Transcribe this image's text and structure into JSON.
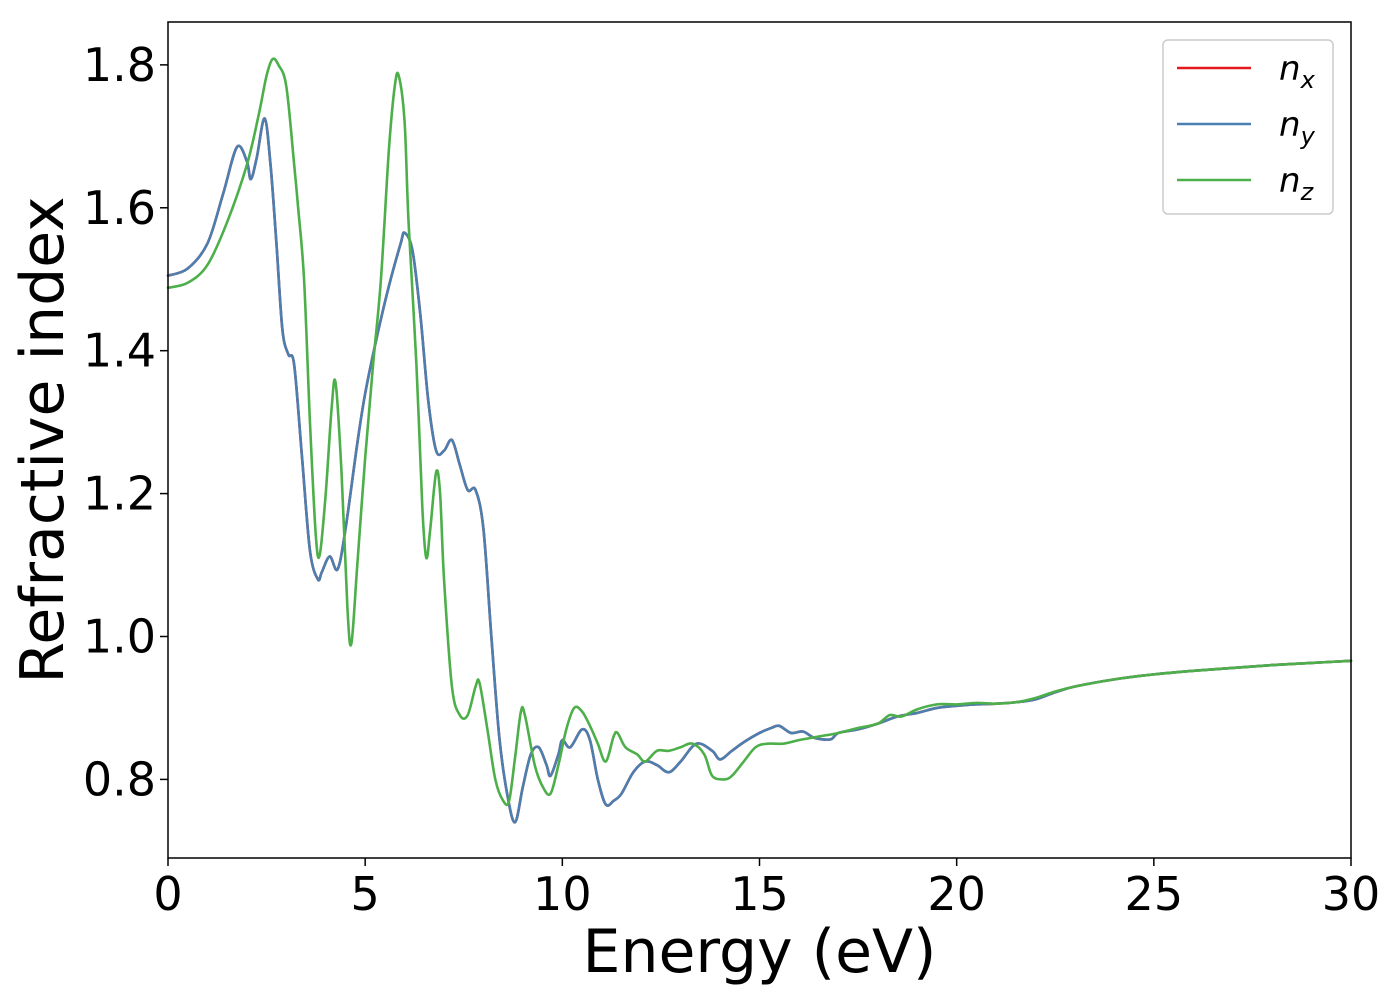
{
  "chart_data": {
    "type": "line",
    "xlabel": "Energy (eV)",
    "ylabel": "Refractive index",
    "xlim": [
      0,
      30
    ],
    "ylim": [
      0.69,
      1.86
    ],
    "xticks": [
      0,
      5,
      10,
      15,
      20,
      25,
      30
    ],
    "xtick_labels": [
      "0",
      "5",
      "10",
      "15",
      "20",
      "25",
      "30"
    ],
    "yticks": [
      0.8,
      1.0,
      1.2,
      1.4,
      1.6,
      1.8
    ],
    "ytick_labels": [
      "0.8",
      "1.0",
      "1.2",
      "1.4",
      "1.6",
      "1.8"
    ],
    "grid": false,
    "legend_position": "top-right",
    "series": [
      {
        "name": "n",
        "subscript": "x",
        "color": "#e41a1c",
        "points": [
          [
            0,
            1.505
          ],
          [
            0.5,
            1.515
          ],
          [
            1.0,
            1.55
          ],
          [
            1.4,
            1.62
          ],
          [
            1.75,
            1.685
          ],
          [
            2.0,
            1.665
          ],
          [
            2.1,
            1.64
          ],
          [
            2.25,
            1.67
          ],
          [
            2.45,
            1.725
          ],
          [
            2.6,
            1.66
          ],
          [
            2.75,
            1.55
          ],
          [
            2.9,
            1.43
          ],
          [
            3.05,
            1.395
          ],
          [
            3.2,
            1.38
          ],
          [
            3.4,
            1.25
          ],
          [
            3.6,
            1.12
          ],
          [
            3.8,
            1.08
          ],
          [
            3.9,
            1.09
          ],
          [
            4.1,
            1.112
          ],
          [
            4.3,
            1.094
          ],
          [
            4.5,
            1.15
          ],
          [
            4.8,
            1.27
          ],
          [
            5.0,
            1.34
          ],
          [
            5.3,
            1.42
          ],
          [
            5.6,
            1.49
          ],
          [
            5.9,
            1.55
          ],
          [
            6.0,
            1.565
          ],
          [
            6.2,
            1.54
          ],
          [
            6.4,
            1.45
          ],
          [
            6.6,
            1.33
          ],
          [
            6.8,
            1.26
          ],
          [
            7.0,
            1.26
          ],
          [
            7.2,
            1.275
          ],
          [
            7.4,
            1.24
          ],
          [
            7.6,
            1.205
          ],
          [
            7.8,
            1.205
          ],
          [
            8.0,
            1.15
          ],
          [
            8.2,
            1.0
          ],
          [
            8.4,
            0.86
          ],
          [
            8.6,
            0.78
          ],
          [
            8.8,
            0.74
          ],
          [
            9.0,
            0.79
          ],
          [
            9.2,
            0.835
          ],
          [
            9.4,
            0.845
          ],
          [
            9.6,
            0.82
          ],
          [
            9.7,
            0.805
          ],
          [
            9.9,
            0.835
          ],
          [
            10.0,
            0.855
          ],
          [
            10.2,
            0.845
          ],
          [
            10.5,
            0.87
          ],
          [
            10.7,
            0.855
          ],
          [
            10.9,
            0.8
          ],
          [
            11.1,
            0.765
          ],
          [
            11.3,
            0.77
          ],
          [
            11.5,
            0.78
          ],
          [
            11.8,
            0.81
          ],
          [
            12.1,
            0.825
          ],
          [
            12.4,
            0.82
          ],
          [
            12.7,
            0.81
          ],
          [
            13.0,
            0.825
          ],
          [
            13.4,
            0.85
          ],
          [
            13.8,
            0.84
          ],
          [
            14.0,
            0.828
          ],
          [
            14.3,
            0.84
          ],
          [
            14.6,
            0.852
          ],
          [
            15.0,
            0.865
          ],
          [
            15.3,
            0.872
          ],
          [
            15.5,
            0.875
          ],
          [
            15.8,
            0.865
          ],
          [
            16.1,
            0.867
          ],
          [
            16.4,
            0.858
          ],
          [
            16.8,
            0.856
          ],
          [
            17.0,
            0.865
          ],
          [
            17.5,
            0.87
          ],
          [
            18.0,
            0.878
          ],
          [
            18.5,
            0.888
          ],
          [
            19.0,
            0.893
          ],
          [
            19.5,
            0.9
          ],
          [
            20.0,
            0.903
          ],
          [
            20.5,
            0.905
          ],
          [
            21.0,
            0.906
          ],
          [
            21.5,
            0.908
          ],
          [
            22.0,
            0.912
          ],
          [
            22.5,
            0.922
          ],
          [
            23.0,
            0.93
          ],
          [
            24.0,
            0.94
          ],
          [
            25.0,
            0.947
          ],
          [
            26.0,
            0.952
          ],
          [
            27.0,
            0.956
          ],
          [
            28.0,
            0.96
          ],
          [
            29.0,
            0.963
          ],
          [
            30.0,
            0.966
          ]
        ]
      },
      {
        "name": "n",
        "subscript": "y",
        "color": "#4a7fb0",
        "points": [
          [
            0,
            1.505
          ],
          [
            0.5,
            1.515
          ],
          [
            1.0,
            1.55
          ],
          [
            1.4,
            1.62
          ],
          [
            1.75,
            1.685
          ],
          [
            2.0,
            1.665
          ],
          [
            2.1,
            1.64
          ],
          [
            2.25,
            1.67
          ],
          [
            2.45,
            1.725
          ],
          [
            2.6,
            1.66
          ],
          [
            2.75,
            1.55
          ],
          [
            2.9,
            1.43
          ],
          [
            3.05,
            1.395
          ],
          [
            3.2,
            1.38
          ],
          [
            3.4,
            1.25
          ],
          [
            3.6,
            1.12
          ],
          [
            3.8,
            1.08
          ],
          [
            3.9,
            1.09
          ],
          [
            4.1,
            1.112
          ],
          [
            4.3,
            1.094
          ],
          [
            4.5,
            1.15
          ],
          [
            4.8,
            1.27
          ],
          [
            5.0,
            1.34
          ],
          [
            5.3,
            1.42
          ],
          [
            5.6,
            1.49
          ],
          [
            5.9,
            1.55
          ],
          [
            6.0,
            1.565
          ],
          [
            6.2,
            1.54
          ],
          [
            6.4,
            1.45
          ],
          [
            6.6,
            1.33
          ],
          [
            6.8,
            1.26
          ],
          [
            7.0,
            1.26
          ],
          [
            7.2,
            1.275
          ],
          [
            7.4,
            1.24
          ],
          [
            7.6,
            1.205
          ],
          [
            7.8,
            1.205
          ],
          [
            8.0,
            1.15
          ],
          [
            8.2,
            1.0
          ],
          [
            8.4,
            0.86
          ],
          [
            8.6,
            0.78
          ],
          [
            8.8,
            0.74
          ],
          [
            9.0,
            0.79
          ],
          [
            9.2,
            0.835
          ],
          [
            9.4,
            0.845
          ],
          [
            9.6,
            0.82
          ],
          [
            9.7,
            0.805
          ],
          [
            9.9,
            0.835
          ],
          [
            10.0,
            0.855
          ],
          [
            10.2,
            0.845
          ],
          [
            10.5,
            0.87
          ],
          [
            10.7,
            0.855
          ],
          [
            10.9,
            0.8
          ],
          [
            11.1,
            0.765
          ],
          [
            11.3,
            0.77
          ],
          [
            11.5,
            0.78
          ],
          [
            11.8,
            0.81
          ],
          [
            12.1,
            0.825
          ],
          [
            12.4,
            0.82
          ],
          [
            12.7,
            0.81
          ],
          [
            13.0,
            0.825
          ],
          [
            13.4,
            0.85
          ],
          [
            13.8,
            0.84
          ],
          [
            14.0,
            0.828
          ],
          [
            14.3,
            0.84
          ],
          [
            14.6,
            0.852
          ],
          [
            15.0,
            0.865
          ],
          [
            15.3,
            0.872
          ],
          [
            15.5,
            0.875
          ],
          [
            15.8,
            0.865
          ],
          [
            16.1,
            0.867
          ],
          [
            16.4,
            0.858
          ],
          [
            16.8,
            0.856
          ],
          [
            17.0,
            0.865
          ],
          [
            17.5,
            0.87
          ],
          [
            18.0,
            0.878
          ],
          [
            18.5,
            0.888
          ],
          [
            19.0,
            0.893
          ],
          [
            19.5,
            0.9
          ],
          [
            20.0,
            0.903
          ],
          [
            20.5,
            0.905
          ],
          [
            21.0,
            0.906
          ],
          [
            21.5,
            0.908
          ],
          [
            22.0,
            0.912
          ],
          [
            22.5,
            0.922
          ],
          [
            23.0,
            0.93
          ],
          [
            24.0,
            0.94
          ],
          [
            25.0,
            0.947
          ],
          [
            26.0,
            0.952
          ],
          [
            27.0,
            0.956
          ],
          [
            28.0,
            0.96
          ],
          [
            29.0,
            0.963
          ],
          [
            30.0,
            0.966
          ]
        ]
      },
      {
        "name": "n",
        "subscript": "z",
        "color": "#4daf4a",
        "points": [
          [
            0,
            1.488
          ],
          [
            0.5,
            1.495
          ],
          [
            1.0,
            1.52
          ],
          [
            1.5,
            1.58
          ],
          [
            2.0,
            1.66
          ],
          [
            2.3,
            1.73
          ],
          [
            2.5,
            1.785
          ],
          [
            2.65,
            1.808
          ],
          [
            2.8,
            1.8
          ],
          [
            3.0,
            1.77
          ],
          [
            3.2,
            1.66
          ],
          [
            3.3,
            1.6
          ],
          [
            3.45,
            1.5
          ],
          [
            3.6,
            1.3
          ],
          [
            3.75,
            1.14
          ],
          [
            3.85,
            1.115
          ],
          [
            4.0,
            1.2
          ],
          [
            4.15,
            1.32
          ],
          [
            4.25,
            1.355
          ],
          [
            4.4,
            1.23
          ],
          [
            4.55,
            1.04
          ],
          [
            4.65,
            0.99
          ],
          [
            4.8,
            1.1
          ],
          [
            5.0,
            1.25
          ],
          [
            5.2,
            1.38
          ],
          [
            5.4,
            1.5
          ],
          [
            5.6,
            1.68
          ],
          [
            5.75,
            1.77
          ],
          [
            5.85,
            1.785
          ],
          [
            6.0,
            1.72
          ],
          [
            6.1,
            1.58
          ],
          [
            6.3,
            1.38
          ],
          [
            6.45,
            1.18
          ],
          [
            6.55,
            1.11
          ],
          [
            6.65,
            1.15
          ],
          [
            6.8,
            1.23
          ],
          [
            6.9,
            1.2
          ],
          [
            7.0,
            1.08
          ],
          [
            7.2,
            0.93
          ],
          [
            7.4,
            0.89
          ],
          [
            7.6,
            0.89
          ],
          [
            7.8,
            0.93
          ],
          [
            7.9,
            0.935
          ],
          [
            8.1,
            0.87
          ],
          [
            8.3,
            0.8
          ],
          [
            8.5,
            0.77
          ],
          [
            8.65,
            0.77
          ],
          [
            8.8,
            0.83
          ],
          [
            8.95,
            0.895
          ],
          [
            9.05,
            0.89
          ],
          [
            9.3,
            0.82
          ],
          [
            9.5,
            0.79
          ],
          [
            9.7,
            0.78
          ],
          [
            9.9,
            0.82
          ],
          [
            10.1,
            0.87
          ],
          [
            10.3,
            0.9
          ],
          [
            10.5,
            0.895
          ],
          [
            10.7,
            0.875
          ],
          [
            10.9,
            0.85
          ],
          [
            11.1,
            0.825
          ],
          [
            11.3,
            0.86
          ],
          [
            11.4,
            0.865
          ],
          [
            11.6,
            0.845
          ],
          [
            11.9,
            0.835
          ],
          [
            12.1,
            0.825
          ],
          [
            12.4,
            0.84
          ],
          [
            12.7,
            0.84
          ],
          [
            13.0,
            0.845
          ],
          [
            13.3,
            0.85
          ],
          [
            13.6,
            0.835
          ],
          [
            13.8,
            0.805
          ],
          [
            14.1,
            0.8
          ],
          [
            14.3,
            0.805
          ],
          [
            14.6,
            0.825
          ],
          [
            14.9,
            0.845
          ],
          [
            15.2,
            0.85
          ],
          [
            15.6,
            0.85
          ],
          [
            16.0,
            0.855
          ],
          [
            16.5,
            0.86
          ],
          [
            17.0,
            0.865
          ],
          [
            17.5,
            0.872
          ],
          [
            18.0,
            0.878
          ],
          [
            18.3,
            0.89
          ],
          [
            18.6,
            0.888
          ],
          [
            19.0,
            0.898
          ],
          [
            19.5,
            0.905
          ],
          [
            20.0,
            0.905
          ],
          [
            20.5,
            0.907
          ],
          [
            21.0,
            0.906
          ],
          [
            21.5,
            0.908
          ],
          [
            22.0,
            0.914
          ],
          [
            22.5,
            0.923
          ],
          [
            23.0,
            0.93
          ],
          [
            24.0,
            0.94
          ],
          [
            25.0,
            0.947
          ],
          [
            26.0,
            0.952
          ],
          [
            27.0,
            0.956
          ],
          [
            28.0,
            0.96
          ],
          [
            29.0,
            0.963
          ],
          [
            30.0,
            0.966
          ]
        ]
      }
    ]
  }
}
